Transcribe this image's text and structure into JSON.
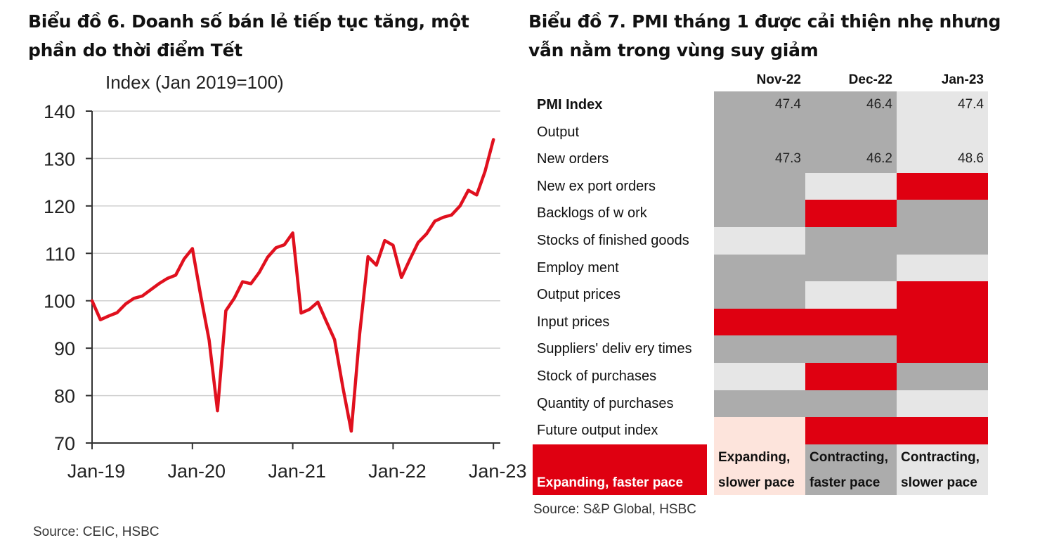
{
  "left_chart": {
    "title": "Biểu đồ 6. Doanh số bán lẻ tiếp tục tăng, một phần do thời điểm Tết",
    "y_caption": "Index (Jan 2019=100)",
    "source": "Source: CEIC, HSBC"
  },
  "right_chart": {
    "title": "Biểu đồ 7. PMI tháng 1 được cải thiện nhẹ nhưng vẫn nằm trong vùng suy giảm",
    "source": "Source: S&P Global, HSBC"
  },
  "colors": {
    "line": "#e0101e",
    "red": "#df0011",
    "dark_gray": "#acacac",
    "light_gray": "#e6e6e6",
    "pink": "#fde4dc",
    "axis": "#333333",
    "grid": "#d0d0d0"
  },
  "chart_data": [
    {
      "type": "line",
      "title": "Biểu đồ 6. Doanh số bán lẻ tiếp tục tăng, một phần do thời điểm Tết",
      "ylabel": "Index (Jan 2019=100)",
      "ylim": [
        70,
        140
      ],
      "yticks": [
        70,
        80,
        90,
        100,
        110,
        120,
        130,
        140
      ],
      "xtick_labels": [
        "Jan-19",
        "Jan-20",
        "Jan-21",
        "Jan-22",
        "Jan-23"
      ],
      "grid": true,
      "x_start": "Jan-2019",
      "frequency": "monthly",
      "series": [
        {
          "values": [
            100,
            96,
            96.8,
            97.5,
            99.3,
            100.5,
            101,
            102.3,
            103.6,
            104.7,
            105.4,
            108.8,
            111,
            101,
            91.7,
            76.8,
            97.9,
            100.5,
            104,
            103.6,
            106,
            109.2,
            111.2,
            111.8,
            114.3,
            97.4,
            98.2,
            99.7,
            95.7,
            91.8,
            81.7,
            72.5,
            93,
            109.3,
            107.5,
            112.7,
            111.7,
            104.9,
            108.7,
            112.3,
            114.1,
            116.8,
            117.6,
            118.1,
            120,
            123.3,
            122.3,
            127.3,
            134
          ]
        }
      ]
    },
    {
      "type": "heatmap",
      "title": "Biểu đồ 7. PMI tháng 1 được cải thiện nhẹ nhưng vẫn nằm trong vùng suy giảm",
      "columns": [
        "Nov-22",
        "Dec-22",
        "Jan-23"
      ],
      "rows": [
        {
          "label": "PMI Index",
          "bold": true,
          "values": [
            "47.4",
            "46.4",
            "47.4"
          ],
          "states": [
            "cf",
            "cf",
            "cs"
          ]
        },
        {
          "label": "Output",
          "values": [
            "",
            "",
            ""
          ],
          "states": [
            "cf",
            "cf",
            "cs"
          ]
        },
        {
          "label": "New orders",
          "values": [
            "47.3",
            "46.2",
            "48.6"
          ],
          "states": [
            "cf",
            "cf",
            "cs"
          ]
        },
        {
          "label": "New ex port orders",
          "values": [
            "",
            "",
            ""
          ],
          "states": [
            "cf",
            "cs",
            "ef"
          ]
        },
        {
          "label": "Backlogs of w ork",
          "values": [
            "",
            "",
            ""
          ],
          "states": [
            "cf",
            "ef",
            "cf"
          ]
        },
        {
          "label": "Stocks of finished goods",
          "values": [
            "",
            "",
            ""
          ],
          "states": [
            "cs",
            "cf",
            "cf"
          ]
        },
        {
          "label": "Employ ment",
          "values": [
            "",
            "",
            ""
          ],
          "states": [
            "cf",
            "cf",
            "cs"
          ]
        },
        {
          "label": "Output prices",
          "values": [
            "",
            "",
            ""
          ],
          "states": [
            "cf",
            "cs",
            "ef"
          ]
        },
        {
          "label": "Input prices",
          "values": [
            "",
            "",
            ""
          ],
          "states": [
            "ef",
            "ef",
            "ef"
          ]
        },
        {
          "label": "Suppliers' deliv ery times",
          "values": [
            "",
            "",
            ""
          ],
          "states": [
            "cf",
            "cf",
            "ef"
          ]
        },
        {
          "label": "Stock of purchases",
          "values": [
            "",
            "",
            ""
          ],
          "states": [
            "cs",
            "ef",
            "cf"
          ]
        },
        {
          "label": "Quantity of purchases",
          "values": [
            "",
            "",
            ""
          ],
          "states": [
            "cf",
            "cf",
            "cs"
          ]
        },
        {
          "label": "Future output index",
          "values": [
            "",
            "",
            ""
          ],
          "states": [
            "es",
            "ef",
            "ef"
          ]
        }
      ],
      "legend": [
        {
          "key": "ef",
          "line1": "",
          "line2": "Expanding, faster pace"
        },
        {
          "key": "es",
          "line1": "Expanding,",
          "line2": "slower pace"
        },
        {
          "key": "cf",
          "line1": "Contracting,",
          "line2": "faster pace"
        },
        {
          "key": "cs",
          "line1": "Contracting,",
          "line2": "slower pace"
        }
      ]
    }
  ]
}
